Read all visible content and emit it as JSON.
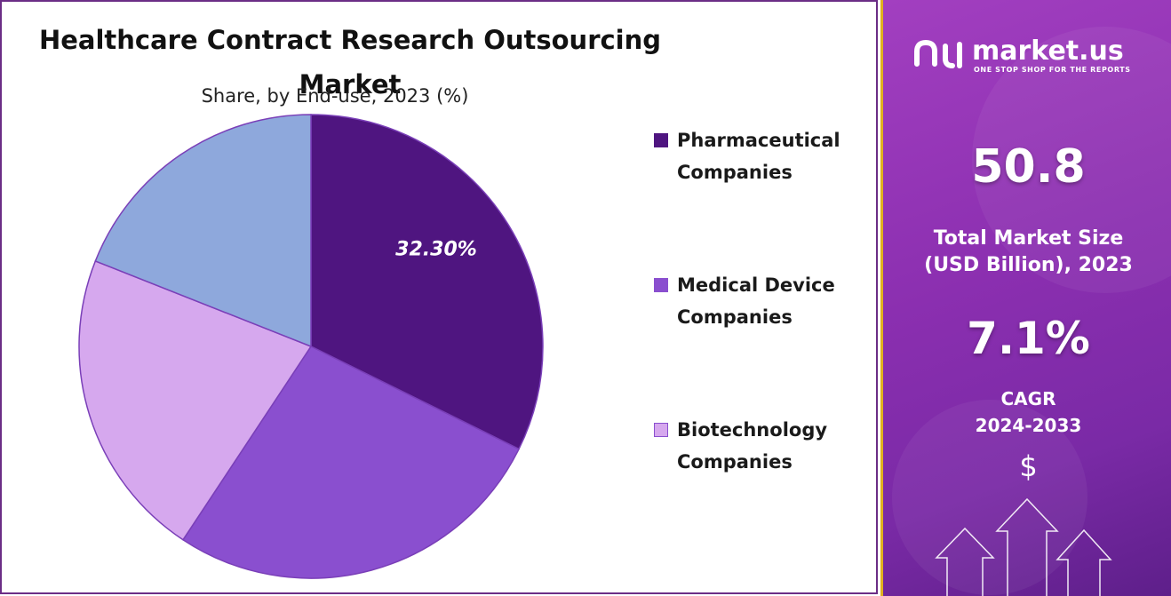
{
  "chart_data": {
    "type": "pie",
    "title": "Healthcare Contract Research Outsourcing Market",
    "subtitle": "Share, by End-use, 2023 (%)",
    "slices": [
      {
        "name": "Pharmaceutical Companies",
        "value": 32.3,
        "label": "32.30%",
        "color": "#4f1580"
      },
      {
        "name": "Medical Device Companies",
        "value": 27.0,
        "color": "#8a4fcf"
      },
      {
        "name": "Biotechnology Companies",
        "value": 21.7,
        "color": "#d6a8ee"
      },
      {
        "name": "",
        "value": 19.0,
        "color": "#8ea8dc"
      }
    ],
    "legend": [
      {
        "label": "Pharmaceutical Companies",
        "line1": "Pharmaceutical",
        "line2": "Companies",
        "color": "#4f1580"
      },
      {
        "label": "Medical Device Companies",
        "line1": "Medical Device",
        "line2": "Companies",
        "color": "#8a4fcf"
      },
      {
        "label": "Biotechnology Companies",
        "line1": "Biotechnology",
        "line2": "Companies",
        "color": "#d6a8ee"
      }
    ],
    "legend_position": "right"
  },
  "sidebar": {
    "brand": "market.us",
    "tagline": "ONE STOP SHOP FOR THE REPORTS",
    "market_size_value": "50.8",
    "market_size_label_line1": "Total Market Size",
    "market_size_label_line2": "(USD Billion), 2023",
    "cagr_value": "7.1%",
    "cagr_label_line1": "CAGR",
    "cagr_label_line2": "2024-2033",
    "currency_symbol": "$"
  },
  "colors": {
    "border": "#6b2d86",
    "sidebar_bg": "#8b2fb0",
    "sidebar_accent": "#e0b020"
  }
}
